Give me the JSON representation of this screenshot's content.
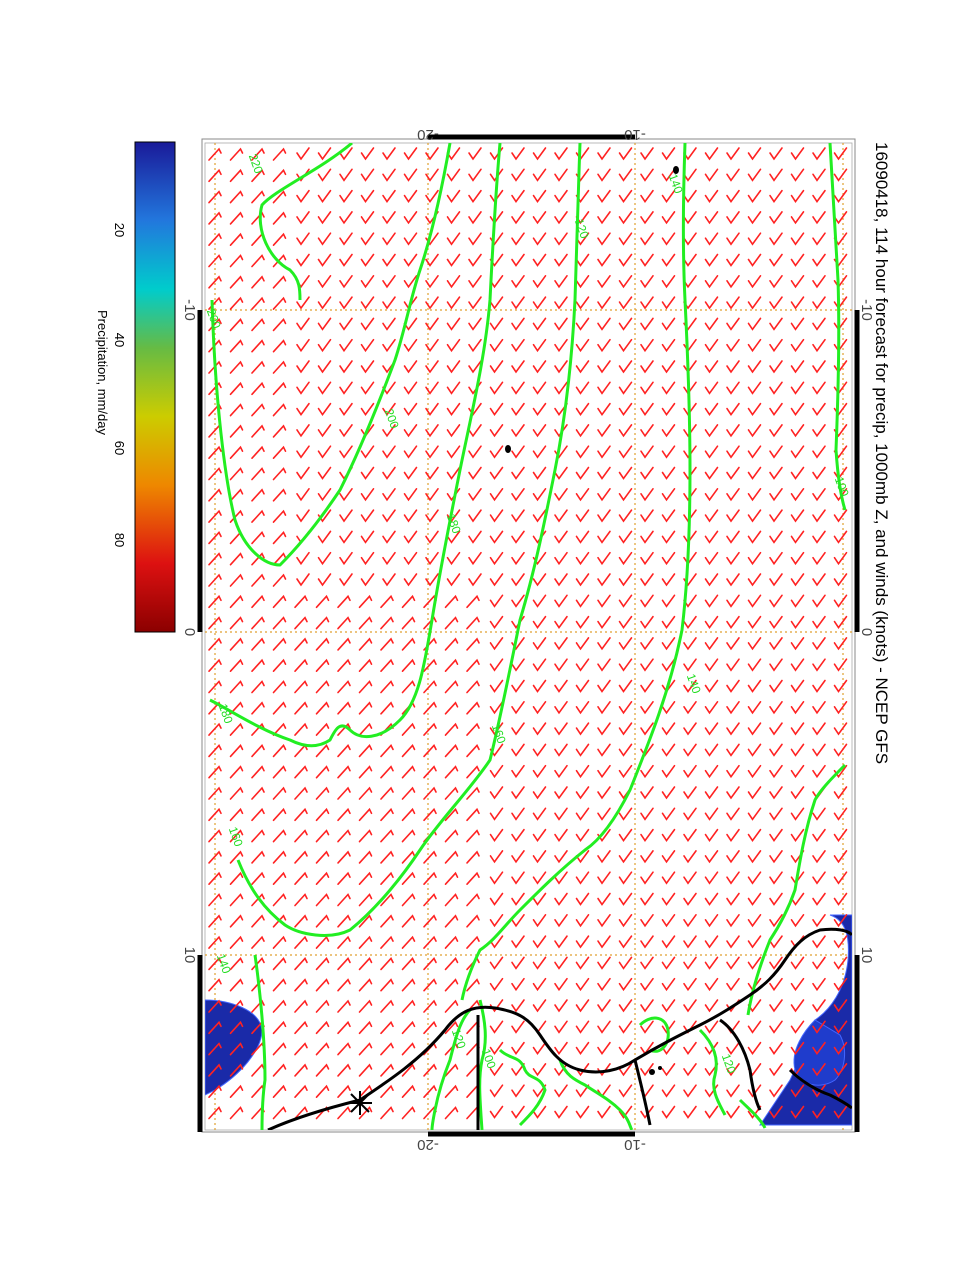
{
  "title": "16090418, 114 hour forecast for precip, 1000mb Z, and winds (knots) - NCEP GFS",
  "colorbar": {
    "label": "Precipitation, mm/day",
    "ticks": [
      "20",
      "40",
      "60",
      "80"
    ],
    "colors": [
      "#8b0000",
      "#dd1111",
      "#ee8800",
      "#cccc00",
      "#66bb44",
      "#00cccc",
      "#2277dd",
      "#1a1a99"
    ]
  },
  "axes": {
    "left_ticks": [
      "-10",
      "0",
      "10"
    ],
    "top_ticks": [
      "-20",
      "-10"
    ],
    "right_ticks": [
      "-10",
      "0",
      "10"
    ],
    "bottom_ticks": [
      "-20",
      "-10"
    ]
  },
  "contour_labels": [
    "220",
    "200",
    "180",
    "160",
    "140",
    "120",
    "100"
  ],
  "colors": {
    "contour": "#22ee22",
    "barb": "#ff2222",
    "grid": "#e0a030",
    "coast": "#000000",
    "precip": "#1a2aa8"
  },
  "icons": [
    "star-marker-icon"
  ]
}
